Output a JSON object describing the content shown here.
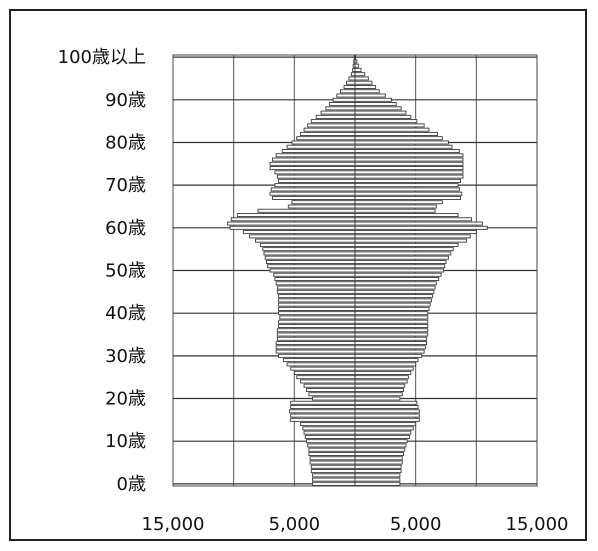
{
  "chart_data": {
    "type": "bar",
    "orientation": "horizontal-population-pyramid",
    "title": "",
    "xlabel": "",
    "ylabel": "",
    "y_tick_labels": [
      "100歳以上",
      "90歳",
      "80歳",
      "70歳",
      "60歳",
      "50歳",
      "40歳",
      "30歳",
      "20歳",
      "10歳",
      "0歳"
    ],
    "x_tick_labels": [
      "15,000",
      "5,000",
      "5,000",
      "15,000"
    ],
    "x_range_left": [
      15000,
      0
    ],
    "x_range_right": [
      0,
      15000
    ],
    "grid": true,
    "bar_color": "#7a7a7a",
    "ages": [
      0,
      1,
      2,
      3,
      4,
      5,
      6,
      7,
      8,
      9,
      10,
      11,
      12,
      13,
      14,
      15,
      16,
      17,
      18,
      19,
      20,
      21,
      22,
      23,
      24,
      25,
      26,
      27,
      28,
      29,
      30,
      31,
      32,
      33,
      34,
      35,
      36,
      37,
      38,
      39,
      40,
      41,
      42,
      43,
      44,
      45,
      46,
      47,
      48,
      49,
      50,
      51,
      52,
      53,
      54,
      55,
      56,
      57,
      58,
      59,
      60,
      61,
      62,
      63,
      64,
      65,
      66,
      67,
      68,
      69,
      70,
      71,
      72,
      73,
      74,
      75,
      76,
      77,
      78,
      79,
      80,
      81,
      82,
      83,
      84,
      85,
      86,
      87,
      88,
      89,
      90,
      91,
      92,
      93,
      94,
      95,
      96,
      97,
      98,
      99,
      100
    ],
    "left_values": [
      3500,
      3500,
      3500,
      3600,
      3600,
      3700,
      3700,
      3800,
      3800,
      3900,
      4000,
      4100,
      4200,
      4300,
      4500,
      5300,
      5300,
      5400,
      5300,
      5300,
      3500,
      3800,
      4000,
      4200,
      4500,
      4800,
      5000,
      5300,
      5600,
      5900,
      6300,
      6500,
      6500,
      6500,
      6400,
      6400,
      6400,
      6300,
      6300,
      6200,
      6300,
      6300,
      6300,
      6300,
      6300,
      6400,
      6400,
      6500,
      6600,
      6700,
      7000,
      7200,
      7300,
      7400,
      7500,
      7600,
      7800,
      8200,
      8700,
      9200,
      10300,
      10500,
      10200,
      9700,
      8000,
      5500,
      5200,
      6800,
      7000,
      6900,
      6600,
      6300,
      6400,
      6600,
      7000,
      7000,
      6800,
      6500,
      6000,
      5600,
      5200,
      4800,
      4500,
      4200,
      3900,
      3600,
      3200,
      2800,
      2400,
      2100,
      1800,
      1500,
      1200,
      900,
      700,
      500,
      300,
      200,
      150,
      100,
      50
    ],
    "right_values": [
      3700,
      3700,
      3700,
      3800,
      3800,
      3900,
      3900,
      4000,
      4100,
      4200,
      4300,
      4500,
      4600,
      4800,
      5000,
      5300,
      5300,
      5300,
      5200,
      5100,
      3700,
      3900,
      4000,
      4100,
      4300,
      4400,
      4600,
      4800,
      5000,
      5200,
      5500,
      5700,
      5800,
      5900,
      5900,
      6000,
      6000,
      6000,
      6000,
      6000,
      6000,
      6100,
      6200,
      6300,
      6400,
      6500,
      6600,
      6700,
      6900,
      7100,
      7300,
      7400,
      7500,
      7700,
      7900,
      8100,
      8500,
      9200,
      9500,
      10000,
      10900,
      10500,
      9600,
      8500,
      6600,
      6700,
      7200,
      8700,
      8800,
      8600,
      8500,
      8700,
      8900,
      8900,
      8900,
      8900,
      8900,
      8900,
      8600,
      8000,
      7700,
      7200,
      6800,
      6100,
      5700,
      5100,
      4600,
      4200,
      3800,
      3400,
      3000,
      2500,
      2000,
      1700,
      1400,
      1100,
      800,
      500,
      300,
      150,
      50
    ]
  }
}
